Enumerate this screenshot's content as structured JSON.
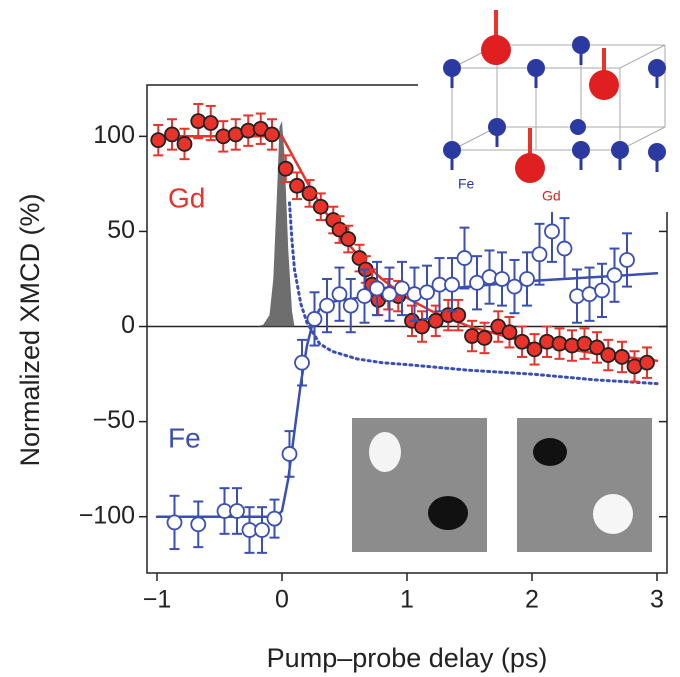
{
  "chart_data": {
    "type": "scatter",
    "x_label": "Pump–probe delay (ps)",
    "y_label": "Normalized XMCD (%)",
    "xlim": [
      -1.08,
      3.08
    ],
    "ylim": [
      -129.6,
      127
    ],
    "xticks": [
      {
        "value": -1,
        "label": "−1"
      },
      0,
      1,
      2,
      3
    ],
    "yticks": [
      100,
      50,
      0,
      {
        "value": -50,
        "label": "−50"
      },
      {
        "value": -100,
        "label": "−100"
      }
    ],
    "series": [
      {
        "name": "Gd",
        "color": "#e8322a",
        "marker": "filled",
        "x": [
          -0.99,
          -0.88,
          -0.78,
          -0.67,
          -0.57,
          -0.47,
          -0.37,
          -0.27,
          -0.17,
          -0.08,
          0.03,
          0.12,
          0.22,
          0.31,
          0.41,
          0.46,
          0.53,
          0.62,
          0.67,
          0.72,
          0.77,
          0.85,
          0.93,
          1.04,
          1.12,
          1.23,
          1.33,
          1.41,
          1.52,
          1.62,
          1.73,
          1.82,
          1.92,
          2.02,
          2.12,
          2.22,
          2.32,
          2.42,
          2.52,
          2.61,
          2.72,
          2.82,
          2.92
        ],
        "values": [
          98,
          101,
          96,
          108,
          107,
          100,
          101,
          103,
          104,
          101,
          83,
          74,
          70,
          63,
          56,
          51,
          46,
          36,
          30,
          22,
          14,
          17,
          16,
          3,
          0,
          3,
          6,
          6,
          -5,
          -6,
          0,
          -3,
          -8,
          -12,
          -8,
          -9,
          -10,
          -9,
          -11,
          -15,
          -16,
          -21,
          -19
        ],
        "errors": [
          8,
          8,
          8,
          9,
          9,
          8,
          8,
          8,
          8,
          8,
          7,
          7,
          7,
          7,
          7,
          7,
          7,
          7,
          7,
          8,
          8,
          8,
          8,
          8,
          8,
          8,
          8,
          8,
          8,
          8,
          8,
          8,
          8,
          8,
          8,
          8,
          8,
          8,
          8,
          8,
          8,
          8,
          8
        ]
      },
      {
        "name": "Fe",
        "color": "#3a4fb0",
        "marker": "open",
        "x": [
          -0.86,
          -0.67,
          -0.46,
          -0.36,
          -0.26,
          -0.16,
          -0.06,
          0.06,
          0.16,
          0.26,
          0.36,
          0.46,
          0.55,
          0.66,
          0.76,
          0.86,
          0.96,
          1.06,
          1.16,
          1.26,
          1.36,
          1.46,
          1.56,
          1.66,
          1.76,
          1.86,
          1.96,
          2.06,
          2.16,
          2.26,
          2.36,
          2.46,
          2.56,
          2.66,
          2.76
        ],
        "values": [
          -103,
          -104,
          -97,
          -97,
          -107,
          -107,
          -101,
          -67,
          -19,
          4,
          11,
          17,
          11,
          16,
          20,
          17,
          20,
          17,
          18,
          22,
          22,
          36,
          23,
          26,
          25,
          21,
          25,
          38,
          50,
          41,
          16,
          17,
          19,
          27,
          35
        ],
        "errors": [
          14,
          12,
          12,
          12,
          12,
          12,
          10,
          12,
          12,
          14,
          14,
          14,
          14,
          14,
          14,
          14,
          14,
          14,
          14,
          14,
          14,
          16,
          14,
          14,
          14,
          14,
          14,
          16,
          16,
          16,
          14,
          14,
          14,
          14,
          14
        ]
      }
    ],
    "lines": [
      {
        "color": "#e8322a",
        "dash": "solid",
        "x": [
          -1,
          -0.5,
          0,
          0.1,
          0.2,
          0.3,
          0.4,
          0.5,
          0.6,
          0.7,
          0.8,
          0.9,
          1.0,
          1.2,
          1.5,
          2.0,
          2.5,
          3.0
        ],
        "values": [
          100,
          100,
          100,
          88,
          76,
          65,
          55,
          46,
          38,
          31,
          25,
          20,
          15,
          8,
          0,
          -9,
          -14,
          -18
        ]
      },
      {
        "color": "#3a4fb0",
        "dash": "solid",
        "x": [
          -1,
          -0.5,
          -0.05,
          0,
          0.05,
          0.1,
          0.15,
          0.2,
          0.25,
          0.3,
          0.4,
          0.6,
          1,
          1.5,
          2,
          2.5,
          3
        ],
        "values": [
          -100,
          -100,
          -100,
          -97,
          -80,
          -55,
          -30,
          -10,
          3,
          9,
          13,
          15,
          18,
          21,
          24,
          26,
          28
        ]
      },
      {
        "color": "#3a4fb0",
        "dash": "dotted",
        "x": [
          0.06,
          0.08,
          0.1,
          0.15,
          0.2,
          0.3,
          0.4,
          0.6,
          0.8,
          1,
          1.5,
          2,
          2.5,
          3
        ],
        "values": [
          65,
          45,
          30,
          12,
          2,
          -9,
          -13,
          -17,
          -19,
          -20,
          -23,
          -25,
          -28,
          -30
        ]
      }
    ],
    "pulse": {
      "color": "#555",
      "x": [
        -0.2,
        -0.15,
        -0.1,
        -0.07,
        -0.04,
        -0.02,
        0,
        0.02,
        0.05,
        0.08,
        0.1
      ],
      "values": [
        0,
        1,
        6,
        25,
        70,
        105,
        108,
        90,
        40,
        8,
        0
      ]
    },
    "inset_labels": [
      "Fe",
      "Gd"
    ]
  }
}
